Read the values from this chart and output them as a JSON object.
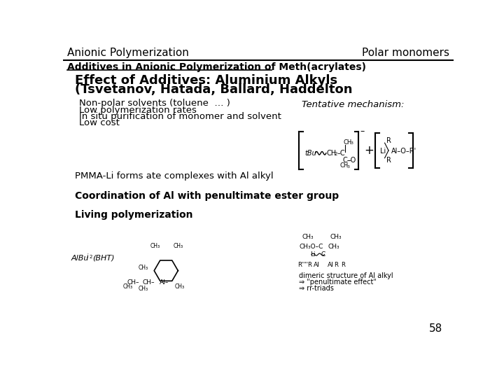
{
  "header_left": "Anionic Polymerization",
  "header_right": "Polar monomers",
  "subheader": "Additives in Anionic Polymerization of Meth(acrylates)",
  "title_line1": "Effect of Additives: Aluminium Alkyls",
  "title_line2": "(Tsvetanov, Hatada, Ballard, Haddelton",
  "bullets": [
    "Non-polar solvents (toluene  … )",
    "Low polymerization rates",
    "In situ purification of monomer and solvent",
    "Low cost"
  ],
  "tentative_label": "Tentative mechanism:",
  "text1": "PMMA-Li forms ate complexes with Al alkyl",
  "text2": "Coordination of Al with penultimate ester group",
  "text3": "Living polymerization",
  "footer": "58",
  "bg_color": "#ffffff",
  "header_line_color": "#000000",
  "text_color": "#000000",
  "bold_color": "#000000",
  "subheader_color": "#000000"
}
